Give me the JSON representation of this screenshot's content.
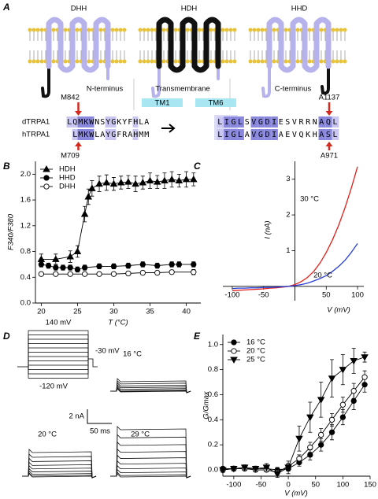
{
  "panel_labels": [
    "A",
    "B",
    "C",
    "D",
    "E"
  ],
  "panel_a": {
    "constructs": [
      "DHH",
      "HDH",
      "HHD"
    ],
    "regions": [
      "N-terminus",
      "Transmembrane",
      "C-terminus"
    ],
    "tm_labels": [
      "TM1",
      "TM6"
    ],
    "sequences": [
      {
        "name": "dTRPA1",
        "n_seq": "LQMKWNSYGKYFHLA",
        "c_seq": "LIGLSVGDIESVRRNAQL"
      },
      {
        "name": "hTRPA1",
        "n_seq": "LMKWLAYGFRAHMM",
        "c_seq": "LIGLAVGDIAEVQKHASL"
      }
    ],
    "residues": [
      "M842",
      "A1137",
      "M709",
      "A971"
    ]
  },
  "panel_d": {
    "protocol_labels": [
      "140 mV",
      "-30 mV",
      "-120 mV"
    ],
    "temperatures": [
      "16 °C",
      "20 °C",
      "29 °C"
    ],
    "scale_bar": [
      "2 nA",
      "50 ms"
    ]
  },
  "chart_data": [
    {
      "type": "line",
      "xlabel": "T (°C)",
      "ylabel": "F340/F380",
      "xlim": [
        19.2,
        42
      ],
      "xticks": [
        20,
        25,
        30,
        35,
        40
      ],
      "ylim": [
        0,
        2.2
      ],
      "yticks": [
        {
          "value": 0,
          "label": "0.0"
        },
        0.4,
        0.8,
        1.2,
        1.6,
        {
          "value": 2,
          "label": "2.0"
        }
      ],
      "legend": "upper left",
      "series": [
        {
          "name": "HDH",
          "color": "#000000",
          "marker": "triangle-up",
          "x": [
            20,
            22,
            24,
            25,
            26,
            26.5,
            27,
            28,
            29,
            30,
            31,
            32,
            33,
            34,
            35,
            36,
            37,
            38,
            39,
            40,
            41
          ],
          "values": [
            0.68,
            0.68,
            0.72,
            0.8,
            1.38,
            1.65,
            1.78,
            1.85,
            1.87,
            1.85,
            1.87,
            1.88,
            1.85,
            1.87,
            1.9,
            1.88,
            1.9,
            1.92,
            1.9,
            1.92,
            1.92
          ],
          "errors": [
            0.08,
            0.08,
            0.09,
            0.09,
            0.12,
            0.12,
            0.12,
            0.12,
            0.12,
            0.1,
            0.1,
            0.1,
            0.12,
            0.1,
            0.12,
            0.1,
            0.12,
            0.12,
            0.1,
            0.12,
            0.1
          ]
        },
        {
          "name": "HHD",
          "color": "#000000",
          "marker": "circle",
          "x": [
            20,
            21,
            22,
            23,
            24,
            25,
            26,
            28,
            30,
            32,
            34,
            36,
            38,
            39,
            41
          ],
          "values": [
            0.6,
            0.58,
            0.55,
            0.55,
            0.55,
            0.52,
            0.55,
            0.57,
            0.57,
            0.58,
            0.6,
            0.58,
            0.6,
            0.6,
            0.6
          ],
          "errors": [
            0.04,
            0.04,
            0.04,
            0.04,
            0.04,
            0.04,
            0.04,
            0.04,
            0.04,
            0.04,
            0.04,
            0.04,
            0.04,
            0.04,
            0.04
          ]
        },
        {
          "name": "DHH",
          "color": "#000000",
          "marker": "circle-open",
          "x": [
            20,
            22,
            24,
            26,
            28,
            30,
            32,
            34,
            36,
            38,
            41
          ],
          "values": [
            0.45,
            0.45,
            0.45,
            0.45,
            0.45,
            0.45,
            0.46,
            0.47,
            0.47,
            0.48,
            0.48
          ],
          "errors": [
            0.03,
            0.03,
            0.03,
            0.03,
            0.03,
            0.03,
            0.03,
            0.03,
            0.03,
            0.03,
            0.04
          ]
        }
      ]
    },
    {
      "type": "line",
      "xlabel": "V (mV)",
      "ylabel": "I (nA)",
      "axes": "zero",
      "xlim": [
        -115,
        110
      ],
      "xticks": [
        -100,
        -50,
        50,
        100
      ],
      "ylim": [
        -0.4,
        3.5
      ],
      "yticks": [
        1,
        2,
        3
      ],
      "annotations": [
        "30 °C",
        "20 °C"
      ],
      "series": [
        {
          "color": "#e0201b",
          "x": [
            -100,
            -90,
            -80,
            -70,
            -60,
            -50,
            -40,
            -30,
            -20,
            -10,
            0,
            10,
            20,
            30,
            40,
            50,
            60,
            70,
            80,
            90,
            100
          ],
          "values": [
            -0.12,
            -0.11,
            -0.1,
            -0.09,
            -0.08,
            -0.07,
            -0.05,
            -0.04,
            -0.02,
            0.0,
            0.05,
            0.13,
            0.25,
            0.42,
            0.65,
            0.95,
            1.3,
            1.72,
            2.2,
            2.75,
            3.35
          ]
        },
        {
          "color": "#2a3fd6",
          "x": [
            -100,
            -90,
            -80,
            -70,
            -60,
            -50,
            -40,
            -30,
            -20,
            -10,
            0,
            10,
            20,
            30,
            40,
            50,
            60,
            70,
            80,
            90,
            100
          ],
          "values": [
            -0.06,
            -0.05,
            -0.05,
            -0.04,
            -0.04,
            -0.03,
            -0.03,
            -0.02,
            -0.01,
            0.0,
            0.02,
            0.05,
            0.09,
            0.15,
            0.22,
            0.3,
            0.42,
            0.56,
            0.73,
            0.95,
            1.2
          ]
        }
      ]
    },
    {
      "type": "line",
      "xlabel": "V (mV)",
      "ylabel": "G/Gmax",
      "xlim": [
        -120,
        150
      ],
      "xticks": [
        -100,
        -50,
        0,
        50,
        100,
        150
      ],
      "ylim": [
        -0.05,
        1.08
      ],
      "yticks": [
        {
          "value": 0,
          "label": "0.0"
        },
        0.2,
        0.4,
        0.6,
        0.8,
        {
          "value": 1,
          "label": "1.0"
        }
      ],
      "legend": "upper left",
      "series": [
        {
          "name": "16 °C",
          "color": "#000000",
          "marker": "circle",
          "x": [
            -120,
            -100,
            -80,
            -60,
            -40,
            -20,
            0,
            20,
            40,
            60,
            80,
            100,
            120,
            140
          ],
          "values": [
            0.01,
            0.01,
            0.01,
            0.01,
            0.01,
            0.0,
            0.01,
            0.06,
            0.12,
            0.2,
            0.3,
            0.42,
            0.55,
            0.68
          ],
          "errors": [
            0.01,
            0.01,
            0.01,
            0.01,
            0.01,
            0.02,
            0.02,
            0.03,
            0.04,
            0.05,
            0.06,
            0.06,
            0.07,
            0.06
          ]
        },
        {
          "name": "20 °C",
          "color": "#000000",
          "marker": "circle-open",
          "x": [
            -120,
            -100,
            -80,
            -60,
            -40,
            -20,
            0,
            20,
            40,
            60,
            80,
            100,
            120,
            140
          ],
          "values": [
            0.0,
            0.01,
            0.01,
            0.0,
            0.0,
            -0.02,
            0.03,
            0.09,
            0.18,
            0.28,
            0.4,
            0.52,
            0.63,
            0.74
          ],
          "errors": [
            0.01,
            0.01,
            0.01,
            0.01,
            0.01,
            0.02,
            0.02,
            0.03,
            0.04,
            0.05,
            0.05,
            0.06,
            0.06,
            0.05
          ]
        },
        {
          "name": "25 °C",
          "color": "#000000",
          "marker": "triangle-down",
          "x": [
            -120,
            -100,
            -80,
            -60,
            -40,
            -20,
            0,
            20,
            40,
            60,
            80,
            100,
            120,
            140
          ],
          "values": [
            0.0,
            0.01,
            0.02,
            0.01,
            0.02,
            -0.03,
            0.02,
            0.25,
            0.42,
            0.56,
            0.73,
            0.8,
            0.87,
            0.9
          ],
          "errors": [
            0.02,
            0.02,
            0.02,
            0.02,
            0.03,
            0.03,
            0.05,
            0.1,
            0.12,
            0.14,
            0.15,
            0.12,
            0.1,
            0.04
          ]
        }
      ]
    }
  ]
}
